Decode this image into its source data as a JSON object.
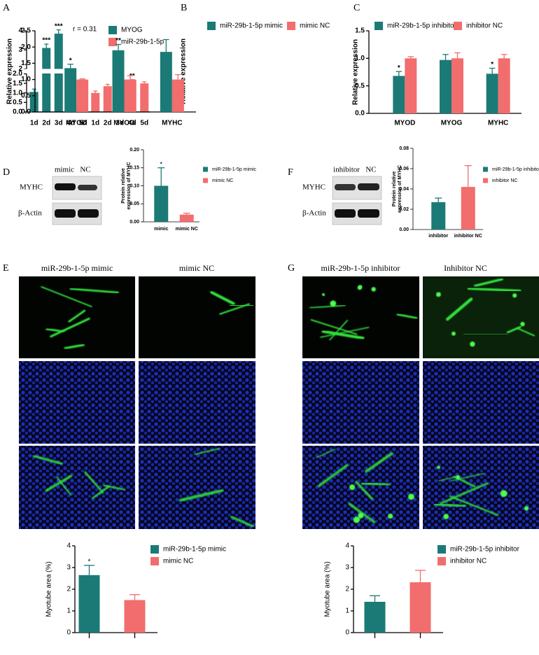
{
  "panel_labels": [
    "A",
    "B",
    "C",
    "D",
    "E",
    "F",
    "G"
  ],
  "blots": [
    {
      "lanes": [
        "mimic",
        "NC"
      ],
      "rows": [
        "MYHC",
        "β-Actin"
      ]
    },
    {
      "lanes": [
        "inhibitor",
        "NC"
      ],
      "rows": [
        "MYHC",
        "β-Actin"
      ]
    }
  ],
  "image_titles": [
    "miR-29b-1-5p mimic",
    "mimic NC",
    "miR-29b-1-5p inhibitor",
    "Inhibitor NC"
  ],
  "chart_data": [
    {
      "type": "bar",
      "ylabel": "Relative expression",
      "annotation": "r =  0.31",
      "categories": [
        "1d",
        "2d",
        "3d",
        "4d",
        "5d",
        "1d",
        "2d",
        "3d",
        "4d",
        "5d"
      ],
      "series": [
        {
          "name": "MYOG",
          "color": "#1b7a76",
          "values": [
            1.05,
            3.1,
            3.85,
            0.65,
            0.25,
            null,
            null,
            null,
            null,
            null
          ],
          "errors": [
            0.15,
            0.2,
            0.2,
            0.03,
            0.02,
            null,
            null,
            null,
            null,
            null
          ],
          "significance": [
            null,
            "***",
            "***",
            "*",
            "**",
            null,
            null,
            null,
            null,
            null
          ]
        },
        {
          "name": "miR-29b-1-5p",
          "color": "#f26d6d",
          "values": [
            null,
            null,
            null,
            null,
            null,
            1.0,
            1.35,
            1.8,
            1.65,
            1.5
          ],
          "errors": [
            null,
            null,
            null,
            null,
            null,
            0.1,
            0.1,
            0.05,
            0.05,
            0.08
          ],
          "significance": [
            null,
            null,
            null,
            null,
            null,
            null,
            null,
            "**",
            "**",
            null
          ]
        }
      ],
      "ylim": [
        0,
        4
      ],
      "ybreak": 2,
      "yticks": [
        {
          "value": 0,
          "label": "0.0"
        },
        0.5,
        {
          "value": 1,
          "label": "1.0"
        },
        1.5,
        {
          "value": 2,
          "label": "2.0"
        }
      ],
      "yticks_upper": [
        2,
        3,
        4
      ]
    },
    {
      "type": "bar",
      "ylabel": "Relative expression",
      "categories": [
        "MYOD",
        "MYOG",
        "MYHC"
      ],
      "series": [
        {
          "name": "miR-29b-1-5p mimic",
          "color": "#1b7a76",
          "values": [
            1.35,
            1.9,
            1.85
          ],
          "errors": [
            0.12,
            0.18,
            0.38
          ],
          "significance": [
            "*",
            "**",
            null
          ]
        },
        {
          "name": "mimic NC",
          "color": "#f26d6d",
          "values": [
            1.0,
            1.0,
            1.0
          ],
          "errors": [
            0.02,
            0.12,
            0.15
          ],
          "significance": [
            null,
            null,
            null
          ]
        }
      ],
      "ylim": [
        0,
        2.5
      ],
      "yticks": [
        {
          "value": 0,
          "label": "0.0"
        },
        0.5,
        {
          "value": 1,
          "label": "1.0"
        },
        1.5,
        {
          "value": 2,
          "label": "2.0"
        },
        2.5
      ]
    },
    {
      "type": "bar",
      "ylabel": "Relative expression",
      "categories": [
        "MYOD",
        "MYOG",
        "MYHC"
      ],
      "series": [
        {
          "name": "miR-29b-1-5p inhibitor",
          "color": "#1b7a76",
          "values": [
            0.68,
            0.97,
            0.72
          ],
          "errors": [
            0.08,
            0.1,
            0.1
          ],
          "significance": [
            "*",
            null,
            "*"
          ]
        },
        {
          "name": "inhibitor NC",
          "color": "#f26d6d",
          "values": [
            1.0,
            1.0,
            1.0
          ],
          "errors": [
            0.03,
            0.1,
            0.07
          ],
          "significance": [
            null,
            null,
            null
          ]
        }
      ],
      "ylim": [
        0,
        1.5
      ],
      "yticks": [
        {
          "value": 0,
          "label": "0.0"
        },
        0.5,
        {
          "value": 1,
          "label": "1.0"
        },
        1.5
      ]
    },
    {
      "type": "bar",
      "ylabel": [
        "Protein relative",
        "expression of MYHC"
      ],
      "categories": [
        "mimic",
        "mimic NC"
      ],
      "series": [
        {
          "name": "miR-29b-1-5p mimic",
          "color": "#1b7a76",
          "values": [
            0.1,
            null
          ],
          "errors": [
            0.05,
            null
          ],
          "significance": [
            "*",
            null
          ]
        },
        {
          "name": "mimic NC",
          "color": "#f26d6d",
          "values": [
            null,
            0.02
          ],
          "errors": [
            null,
            0.004
          ],
          "significance": [
            null,
            null
          ]
        }
      ],
      "ylim": [
        0,
        0.2
      ],
      "yticks": [
        {
          "value": 0,
          "label": "0.00"
        },
        0.05,
        {
          "value": 0.1,
          "label": "0.10"
        },
        0.15,
        {
          "value": 0.2,
          "label": "0.20"
        }
      ]
    },
    {
      "type": "bar",
      "ylabel": [
        "Protein relative",
        "expression of MYHC"
      ],
      "categories": [
        "inhibitor",
        "inhibitor NC"
      ],
      "series": [
        {
          "name": "miR-29b-1-5p inhibitor",
          "color": "#1b7a76",
          "values": [
            0.027,
            null
          ],
          "errors": [
            0.004,
            null
          ],
          "significance": [
            null,
            null
          ]
        },
        {
          "name": "inhibitor NC",
          "color": "#f26d6d",
          "values": [
            null,
            0.042
          ],
          "errors": [
            null,
            0.021
          ],
          "significance": [
            null,
            null
          ]
        }
      ],
      "ylim": [
        0,
        0.08
      ],
      "yticks": [
        {
          "value": 0,
          "label": "0.00"
        },
        0.02,
        0.04,
        0.06,
        0.08
      ]
    },
    {
      "type": "bar",
      "ylabel": "Myotube area (%)",
      "categories": [
        null,
        null
      ],
      "series": [
        {
          "name": "miR-29b-1-5p mimic",
          "color": "#1b7a76",
          "values": [
            2.65,
            null
          ],
          "errors": [
            0.45,
            null
          ],
          "significance": [
            "*",
            null
          ]
        },
        {
          "name": "mimic NC",
          "color": "#f26d6d",
          "values": [
            null,
            1.5
          ],
          "errors": [
            null,
            0.25
          ],
          "significance": [
            null,
            null
          ]
        }
      ],
      "ylim": [
        0,
        4
      ],
      "yticks": [
        0,
        1,
        2,
        3,
        4
      ]
    },
    {
      "type": "bar",
      "ylabel": "Myotube area (%)",
      "categories": [
        null,
        null
      ],
      "series": [
        {
          "name": "miR-29b-1-5p inhibitor",
          "color": "#1b7a76",
          "values": [
            1.42,
            null
          ],
          "errors": [
            0.28,
            null
          ],
          "significance": [
            null,
            null
          ]
        },
        {
          "name": "inhibitor NC",
          "color": "#f26d6d",
          "values": [
            null,
            2.32
          ],
          "errors": [
            null,
            0.55
          ],
          "significance": [
            null,
            null
          ]
        }
      ],
      "ylim": [
        0,
        4
      ],
      "yticks": [
        0,
        1,
        2,
        3,
        4
      ]
    }
  ]
}
